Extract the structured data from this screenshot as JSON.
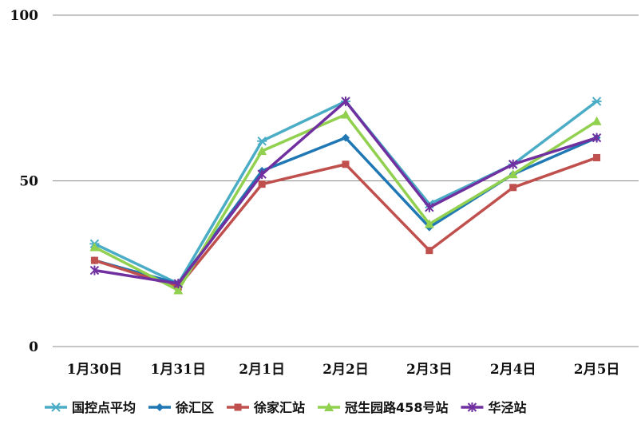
{
  "chart_data": {
    "type": "line",
    "categories": [
      "1月30日",
      "1月31日",
      "2月1日",
      "2月2日",
      "2月3日",
      "2月4日",
      "2月5日"
    ],
    "ylim": [
      0,
      100
    ],
    "yticks": [
      0,
      50,
      100
    ],
    "ytick_labels": [
      "0",
      "50",
      "100"
    ],
    "grid": "horizontal",
    "legend_position": "bottom",
    "series": [
      {
        "name": "国控点平均",
        "color": "#4BACC6",
        "marker": "asterisk-x",
        "values": [
          31,
          19,
          62,
          74,
          43,
          55,
          74
        ]
      },
      {
        "name": "徐汇区",
        "color": "#1F77B4",
        "marker": "diamond",
        "values": [
          26,
          19,
          53,
          63,
          36,
          52,
          63
        ]
      },
      {
        "name": "徐家汇站",
        "color": "#C0504D",
        "marker": "square",
        "values": [
          26,
          18,
          49,
          55,
          29,
          48,
          57
        ]
      },
      {
        "name": "冠生园路458号站",
        "color": "#92D050",
        "marker": "triangle",
        "values": [
          30,
          17,
          59,
          70,
          37,
          52,
          68
        ]
      },
      {
        "name": "华泾站",
        "color": "#7030A0",
        "marker": "asterisk",
        "values": [
          23,
          19,
          52,
          74,
          42,
          55,
          63
        ]
      }
    ]
  }
}
